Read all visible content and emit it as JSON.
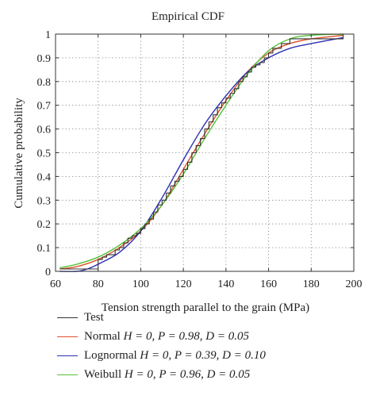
{
  "chart_data": {
    "type": "line",
    "title": "Empirical CDF",
    "xlabel": "Tension strength parallel to the grain (MPa)",
    "ylabel": "Cumulative probability",
    "xlim": [
      60,
      200
    ],
    "ylim": [
      0,
      1
    ],
    "x_ticks": [
      "60",
      "80",
      "100",
      "120",
      "140",
      "160",
      "180",
      "200"
    ],
    "y_ticks": [
      "0",
      "0.1",
      "0.2",
      "0.3",
      "0.4",
      "0.5",
      "0.6",
      "0.7",
      "0.8",
      "0.9",
      "1"
    ],
    "grid": true,
    "legend_position": "below",
    "series": [
      {
        "name": "Test",
        "color": "#333333",
        "style": "step",
        "x": [
          62,
          80,
          82,
          84,
          86,
          88,
          90,
          92,
          94,
          96,
          98,
          100,
          102,
          104,
          106,
          108,
          110,
          112,
          114,
          116,
          118,
          120,
          122,
          124,
          126,
          128,
          130,
          132,
          134,
          136,
          138,
          140,
          142,
          144,
          146,
          148,
          150,
          152,
          154,
          156,
          158,
          160,
          162,
          166,
          170,
          195
        ],
        "y": [
          0.01,
          0.05,
          0.06,
          0.07,
          0.07,
          0.09,
          0.1,
          0.12,
          0.14,
          0.15,
          0.16,
          0.18,
          0.2,
          0.22,
          0.25,
          0.28,
          0.3,
          0.33,
          0.36,
          0.38,
          0.4,
          0.43,
          0.46,
          0.5,
          0.53,
          0.56,
          0.6,
          0.63,
          0.66,
          0.69,
          0.71,
          0.73,
          0.75,
          0.77,
          0.8,
          0.82,
          0.84,
          0.86,
          0.87,
          0.88,
          0.9,
          0.92,
          0.94,
          0.96,
          0.98,
          1.0
        ]
      },
      {
        "name": "Normal",
        "stats": {
          "H": "0",
          "P": "0.98",
          "D": "0.05"
        },
        "color": "#e0522c",
        "x": [
          62,
          70,
          80,
          90,
          100,
          110,
          120,
          130,
          140,
          150,
          160,
          170,
          180,
          195
        ],
        "y": [
          0.01,
          0.02,
          0.05,
          0.1,
          0.17,
          0.28,
          0.43,
          0.58,
          0.72,
          0.84,
          0.92,
          0.96,
          0.98,
          0.995
        ]
      },
      {
        "name": "Lognormal",
        "stats": {
          "H": "0",
          "P": "0.39",
          "D": "0.10"
        },
        "color": "#2b2fb0",
        "x": [
          62,
          70,
          75,
          80,
          90,
          100,
          110,
          120,
          130,
          140,
          150,
          160,
          170,
          180,
          195
        ],
        "y": [
          0.0,
          0.0,
          0.01,
          0.03,
          0.08,
          0.17,
          0.31,
          0.47,
          0.62,
          0.74,
          0.84,
          0.9,
          0.94,
          0.96,
          0.985
        ]
      },
      {
        "name": "Weibull",
        "stats": {
          "H": "0",
          "P": "0.96",
          "D": "0.05"
        },
        "color": "#55c23a",
        "x": [
          62,
          70,
          80,
          90,
          100,
          110,
          120,
          130,
          140,
          150,
          160,
          170,
          180,
          195
        ],
        "y": [
          0.015,
          0.03,
          0.06,
          0.11,
          0.18,
          0.28,
          0.41,
          0.56,
          0.7,
          0.83,
          0.93,
          0.98,
          0.995,
          1.0
        ]
      }
    ]
  },
  "legend": [
    {
      "label": "Test",
      "stats_text": ""
    },
    {
      "label": "Normal",
      "stats_text": "H = 0, P = 0.98, D = 0.05"
    },
    {
      "label": "Lognormal",
      "stats_text": "H = 0, P = 0.39, D = 0.10"
    },
    {
      "label": "Weibull",
      "stats_text": "H = 0, P = 0.96, D = 0.05"
    }
  ]
}
